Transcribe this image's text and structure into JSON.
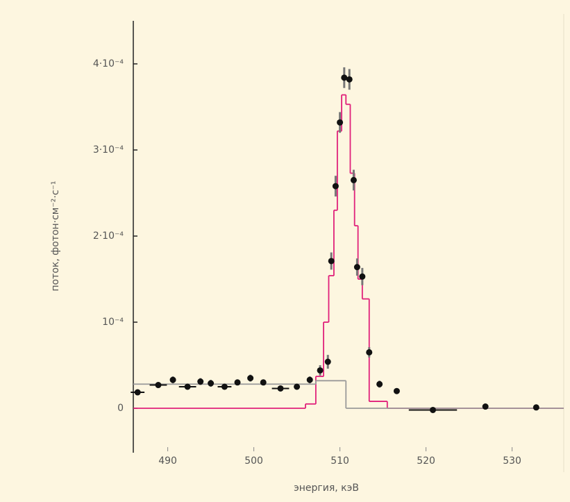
{
  "chart_data": {
    "type": "scatter",
    "x_label": "энергия, кэВ",
    "y_label": "поток, фотон·см⁻²·с⁻¹",
    "xlim": [
      486,
      536
    ],
    "ylim": [
      -5e-05,
      0.00045
    ],
    "xticks": [
      490,
      500,
      510,
      520,
      530
    ],
    "yticks": [
      {
        "value": 0,
        "label": "0"
      },
      {
        "value": 0.0001,
        "label": "10⁻⁴"
      },
      {
        "value": 0.0002,
        "label": "2·10⁻⁴"
      },
      {
        "value": 0.0003,
        "label": "3·10⁻⁴"
      },
      {
        "value": 0.0004,
        "label": "4·10⁻⁴"
      }
    ],
    "series": [
      {
        "color": "#111111",
        "x": [
          486.5,
          488.9,
          490.6,
          492.3,
          493.8,
          495.0,
          496.6,
          498.1,
          499.6,
          501.1,
          503.1,
          505.0,
          506.5,
          507.7,
          508.6,
          509.0,
          509.5,
          510.0,
          510.5,
          511.1,
          511.6,
          512.0,
          512.6,
          513.4,
          514.6,
          516.6,
          520.8,
          526.9,
          532.8
        ],
        "values": [
          1.85e-05,
          2.7e-05,
          3.3e-05,
          2.5e-05,
          3.1e-05,
          2.9e-05,
          2.5e-05,
          3e-05,
          3.5e-05,
          3e-05,
          2.3e-05,
          2.5e-05,
          3.3e-05,
          4.4e-05,
          5.4e-05,
          0.000171,
          0.000258,
          0.000332,
          0.000384,
          0.000382,
          0.000265,
          0.000164,
          0.000153,
          6.5e-05,
          2.8e-05,
          2e-05,
          -2e-06,
          2e-06,
          1e-06
        ],
        "yerr": [
          3e-06,
          3e-06,
          4e-06,
          3e-06,
          4e-06,
          4e-06,
          3e-06,
          3e-06,
          4e-06,
          3e-06,
          3e-06,
          3e-06,
          4e-06,
          6e-06,
          8e-06,
          1e-05,
          1.2e-05,
          1.2e-05,
          1.2e-05,
          1.2e-05,
          1.2e-05,
          1e-05,
          1e-05,
          6e-06,
          4e-06,
          3e-06,
          2e-06,
          2e-06,
          2e-06
        ],
        "xerr": [
          0.8,
          1.0,
          null,
          1.0,
          null,
          null,
          0.8,
          null,
          null,
          null,
          1.0,
          null,
          null,
          null,
          null,
          null,
          null,
          null,
          null,
          null,
          null,
          null,
          null,
          null,
          null,
          null,
          2.8,
          null,
          null
        ]
      }
    ],
    "steps": [
      {
        "color": "#e0207a",
        "edges": [
          486,
          506,
          507.2,
          508.1,
          508.7,
          509.3,
          509.7,
          510.2,
          510.7,
          511.2,
          511.7,
          512.1,
          512.6,
          513.4,
          515.5,
          536
        ],
        "values": [
          0,
          5e-06,
          3.7e-05,
          0.0001,
          0.000154,
          0.00023,
          0.000322,
          0.000364,
          0.000353,
          0.000273,
          0.000212,
          0.00015,
          0.000127,
          8e-06,
          0
        ]
      },
      {
        "color": "#9a9a9a",
        "edges": [
          486,
          507.2,
          510.7,
          536
        ],
        "values": [
          2.8e-05,
          3.2e-05,
          0
        ]
      }
    ]
  }
}
